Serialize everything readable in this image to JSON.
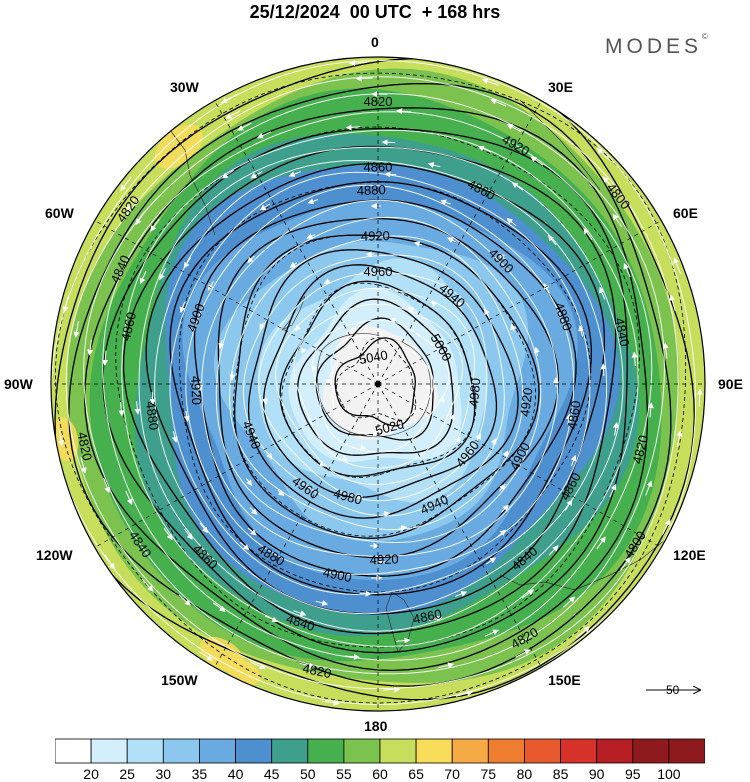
{
  "title": "25/12/2024  00 UTC  + 168 hrs",
  "brand": "MODES",
  "brand_mark": "©",
  "longitude_labels": {
    "lon_0": "0",
    "lon_30e": "30E",
    "lon_60e": "60E",
    "lon_90e": "90E",
    "lon_120e": "120E",
    "lon_150e": "150E",
    "lon_180": "180",
    "lon_150w": "150W",
    "lon_120w": "120W",
    "lon_90w": "90W",
    "lon_60w": "60W",
    "lon_30w": "30W"
  },
  "contour_labels": [
    {
      "text": "4820",
      "angle": 0,
      "r": 0.86
    },
    {
      "text": "4860",
      "angle": 0,
      "r": 0.66
    },
    {
      "text": "4880",
      "angle": -2,
      "r": 0.59
    },
    {
      "text": "4920",
      "angle": -1,
      "r": 0.45
    },
    {
      "text": "4960",
      "angle": 0,
      "r": 0.34
    },
    {
      "text": "4920",
      "angle": 30,
      "r": 0.84
    },
    {
      "text": "4860",
      "angle": 28,
      "r": 0.67
    },
    {
      "text": "4800",
      "angle": 52,
      "r": 0.93
    },
    {
      "text": "4940",
      "angle": 40,
      "r": 0.35
    },
    {
      "text": "4900",
      "angle": 45,
      "r": 0.53
    },
    {
      "text": "5000",
      "angle": 60,
      "r": 0.22
    },
    {
      "text": "4880",
      "angle": 70,
      "r": 0.6
    },
    {
      "text": "4840",
      "angle": 78,
      "r": 0.76
    },
    {
      "text": "5040",
      "angle": -10,
      "r": 0.08
    },
    {
      "text": "4980",
      "angle": 95,
      "r": 0.3
    },
    {
      "text": "4920",
      "angle": 97,
      "r": 0.46
    },
    {
      "text": "4860",
      "angle": 99,
      "r": 0.61
    },
    {
      "text": "4820",
      "angle": 104,
      "r": 0.83
    },
    {
      "text": "5020",
      "angle": 165,
      "r": 0.14
    },
    {
      "text": "4960",
      "angle": 128,
      "r": 0.35
    },
    {
      "text": "4900",
      "angle": 117,
      "r": 0.49
    },
    {
      "text": "4860",
      "angle": 118,
      "r": 0.67
    },
    {
      "text": "4800",
      "angle": 122,
      "r": 0.93
    },
    {
      "text": "4940",
      "angle": 155,
      "r": 0.41
    },
    {
      "text": "4840",
      "angle": 140,
      "r": 0.7
    },
    {
      "text": "4920",
      "angle": 178,
      "r": 0.54
    },
    {
      "text": "4860",
      "angle": 168,
      "r": 0.73
    },
    {
      "text": "4820",
      "angle": 150,
      "r": 0.9
    },
    {
      "text": "4980",
      "angle": 195,
      "r": 0.36
    },
    {
      "text": "4900",
      "angle": 192,
      "r": 0.6
    },
    {
      "text": "4840",
      "angle": 198,
      "r": 0.77
    },
    {
      "text": "4820",
      "angle": 192,
      "r": 0.9
    },
    {
      "text": "4960",
      "angle": 215,
      "r": 0.39
    },
    {
      "text": "4880",
      "angle": 212,
      "r": 0.62
    },
    {
      "text": "4860",
      "angle": 225,
      "r": 0.75
    },
    {
      "text": "4940",
      "angle": 248,
      "r": 0.42
    },
    {
      "text": "4840",
      "angle": 236,
      "r": 0.88
    },
    {
      "text": "4820",
      "angle": 258,
      "r": 0.92
    },
    {
      "text": "4880",
      "angle": 262,
      "r": 0.7
    },
    {
      "text": "4920",
      "angle": 268,
      "r": 0.56
    },
    {
      "text": "4860",
      "angle": 283,
      "r": 0.78
    },
    {
      "text": "4840",
      "angle": 294,
      "r": 0.86
    },
    {
      "text": "4900",
      "angle": 290,
      "r": 0.59
    },
    {
      "text": "4820",
      "angle": 305,
      "r": 0.93
    }
  ],
  "colorbar": {
    "ticks": [
      "20",
      "25",
      "30",
      "35",
      "40",
      "45",
      "50",
      "55",
      "60",
      "65",
      "70",
      "75",
      "80",
      "85",
      "90",
      "95",
      "100"
    ],
    "colors": [
      "#ffffff",
      "#d4effc",
      "#b2e0f7",
      "#8cc8ee",
      "#69abe0",
      "#4d8fcf",
      "#3e9f8c",
      "#46b04e",
      "#7cc24e",
      "#c7dd5c",
      "#f8dc5a",
      "#f5aa45",
      "#ef7d30",
      "#e85a2e",
      "#d7322a",
      "#b71f25",
      "#8e1a1e"
    ]
  },
  "reference_vector": {
    "value": "50"
  }
}
